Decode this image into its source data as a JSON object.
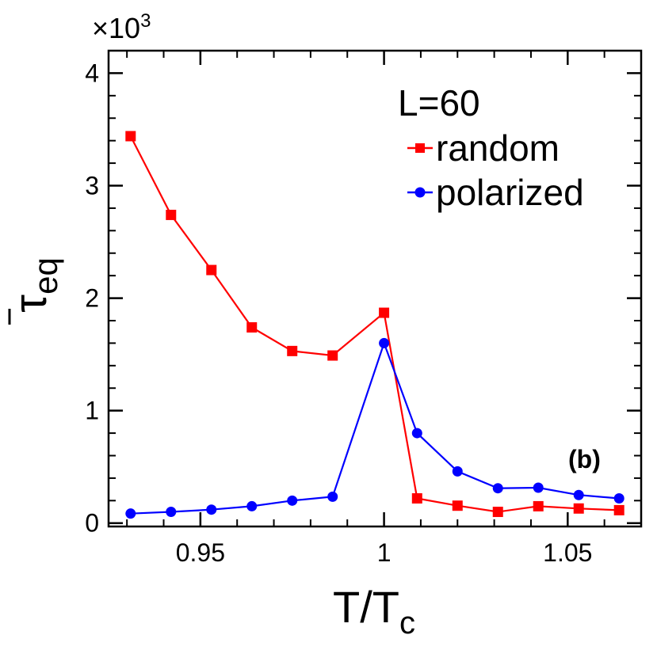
{
  "chart_data": {
    "type": "line",
    "title": "",
    "xlabel": "T/T",
    "xlabel_sub": "c",
    "ylabel": "τ",
    "ylabel_sub": "eq",
    "y_multiplier": "×10",
    "y_multiplier_exp": "3",
    "xlim": [
      0.925,
      1.07
    ],
    "ylim": [
      -0.03,
      4.2
    ],
    "x_ticks": [
      0.95,
      1,
      1.05
    ],
    "x_tick_labels": [
      "0.95",
      "1",
      "1.05"
    ],
    "y_ticks": [
      0,
      1,
      2,
      3,
      4
    ],
    "y_tick_labels": [
      "0",
      "1",
      "2",
      "3",
      "4"
    ],
    "grid": false,
    "legend_title": "L=60",
    "legend_position": "top-right",
    "annotation": "(b)",
    "series": [
      {
        "name": "random",
        "color": "#ff0000",
        "marker": "square",
        "points": [
          [
            0.931,
            3.44
          ],
          [
            0.942,
            2.74
          ],
          [
            0.953,
            2.25
          ],
          [
            0.964,
            1.74
          ],
          [
            0.975,
            1.53
          ],
          [
            0.986,
            1.49
          ],
          [
            1.0,
            1.87
          ],
          [
            1.009,
            0.22
          ],
          [
            1.02,
            0.155
          ],
          [
            1.031,
            0.1
          ],
          [
            1.042,
            0.15
          ],
          [
            1.053,
            0.13
          ],
          [
            1.064,
            0.115
          ]
        ]
      },
      {
        "name": "polarized",
        "color": "#0000ff",
        "marker": "circle",
        "points": [
          [
            0.931,
            0.085
          ],
          [
            0.942,
            0.1
          ],
          [
            0.953,
            0.12
          ],
          [
            0.964,
            0.15
          ],
          [
            0.975,
            0.2
          ],
          [
            0.986,
            0.235
          ],
          [
            1.0,
            1.6
          ],
          [
            1.009,
            0.8
          ],
          [
            1.02,
            0.46
          ],
          [
            1.031,
            0.31
          ],
          [
            1.042,
            0.315
          ],
          [
            1.053,
            0.25
          ],
          [
            1.064,
            0.22
          ]
        ]
      }
    ]
  }
}
